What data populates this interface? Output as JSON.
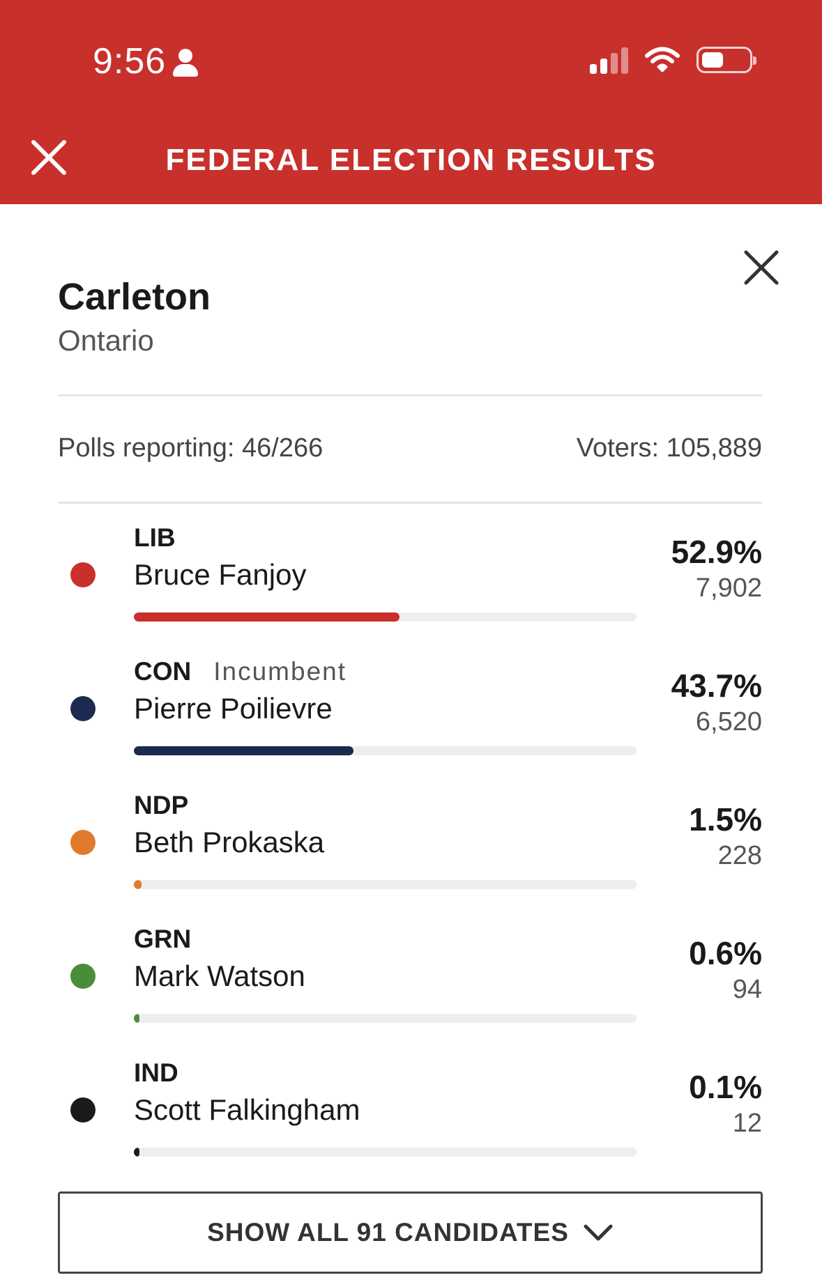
{
  "status_bar": {
    "time": "9:56"
  },
  "header": {
    "title": "FEDERAL ELECTION RESULTS"
  },
  "riding": {
    "name": "Carleton",
    "province": "Ontario"
  },
  "summary": {
    "polls_reporting": "Polls reporting: 46/266",
    "voters": "Voters: 105,889"
  },
  "candidates": [
    {
      "party": "LIB",
      "incumbent_label": "",
      "name": "Bruce Fanjoy",
      "percent": "52.9%",
      "votes": "7,902",
      "share": 52.9,
      "color": "#c8302c"
    },
    {
      "party": "CON",
      "incumbent_label": "Incumbent",
      "name": "Pierre Poilievre",
      "percent": "43.7%",
      "votes": "6,520",
      "share": 43.7,
      "color": "#1b2a4e"
    },
    {
      "party": "NDP",
      "incumbent_label": "",
      "name": "Beth Prokaska",
      "percent": "1.5%",
      "votes": "228",
      "share": 1.5,
      "color": "#e07b2e"
    },
    {
      "party": "GRN",
      "incumbent_label": "",
      "name": "Mark Watson",
      "percent": "0.6%",
      "votes": "94",
      "share": 0.6,
      "color": "#4a8c3a"
    },
    {
      "party": "IND",
      "incumbent_label": "",
      "name": "Scott Falkingham",
      "percent": "0.1%",
      "votes": "12",
      "share": 0.1,
      "color": "#1a1a1a"
    }
  ],
  "footer": {
    "show_all_label": "SHOW ALL 91 CANDIDATES"
  },
  "icons": {
    "close": "close-icon",
    "chevron": "chevron-down-icon",
    "person": "person-icon"
  }
}
